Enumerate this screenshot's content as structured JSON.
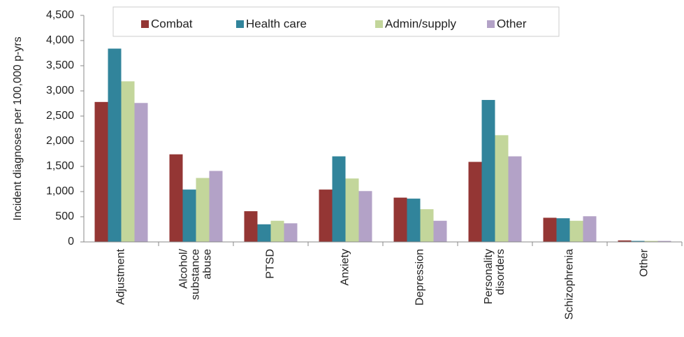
{
  "chart_data": {
    "type": "bar",
    "y_label": "Incident diagnoses per 100,000 p-yrs",
    "categories": [
      "Adjustment",
      "Alcohol/\nsubstance\nabuse",
      "PTSD",
      "Anxiety",
      "Depression",
      "Personality\ndisorders",
      "Schizophrenia",
      "Other"
    ],
    "series": [
      {
        "name": "Combat",
        "color": "#943634",
        "values": [
          2780,
          1740,
          610,
          1040,
          880,
          1590,
          480,
          30
        ]
      },
      {
        "name": "Health care",
        "color": "#31849b",
        "values": [
          3840,
          1040,
          350,
          1700,
          860,
          2820,
          470,
          20
        ]
      },
      {
        "name": "Admin/supply",
        "color": "#c3d69b",
        "values": [
          3190,
          1270,
          420,
          1260,
          650,
          2120,
          420,
          20
        ]
      },
      {
        "name": "Other",
        "color": "#b3a2c7",
        "values": [
          2760,
          1410,
          370,
          1010,
          420,
          1700,
          510,
          20
        ]
      }
    ],
    "ylim": [
      0,
      4500
    ],
    "yticks": [
      0,
      500,
      {
        "value": 1000,
        "label": "1,000"
      },
      {
        "value": 1500,
        "label": "1,500"
      },
      {
        "value": 2000,
        "label": "2,000"
      },
      {
        "value": 2500,
        "label": "2,500"
      },
      {
        "value": 3000,
        "label": "3,000"
      },
      {
        "value": 3500,
        "label": "3,500"
      },
      {
        "value": 4000,
        "label": "4,000"
      },
      {
        "value": 4500,
        "label": "4,500"
      }
    ],
    "grid": false,
    "legend": "top"
  }
}
